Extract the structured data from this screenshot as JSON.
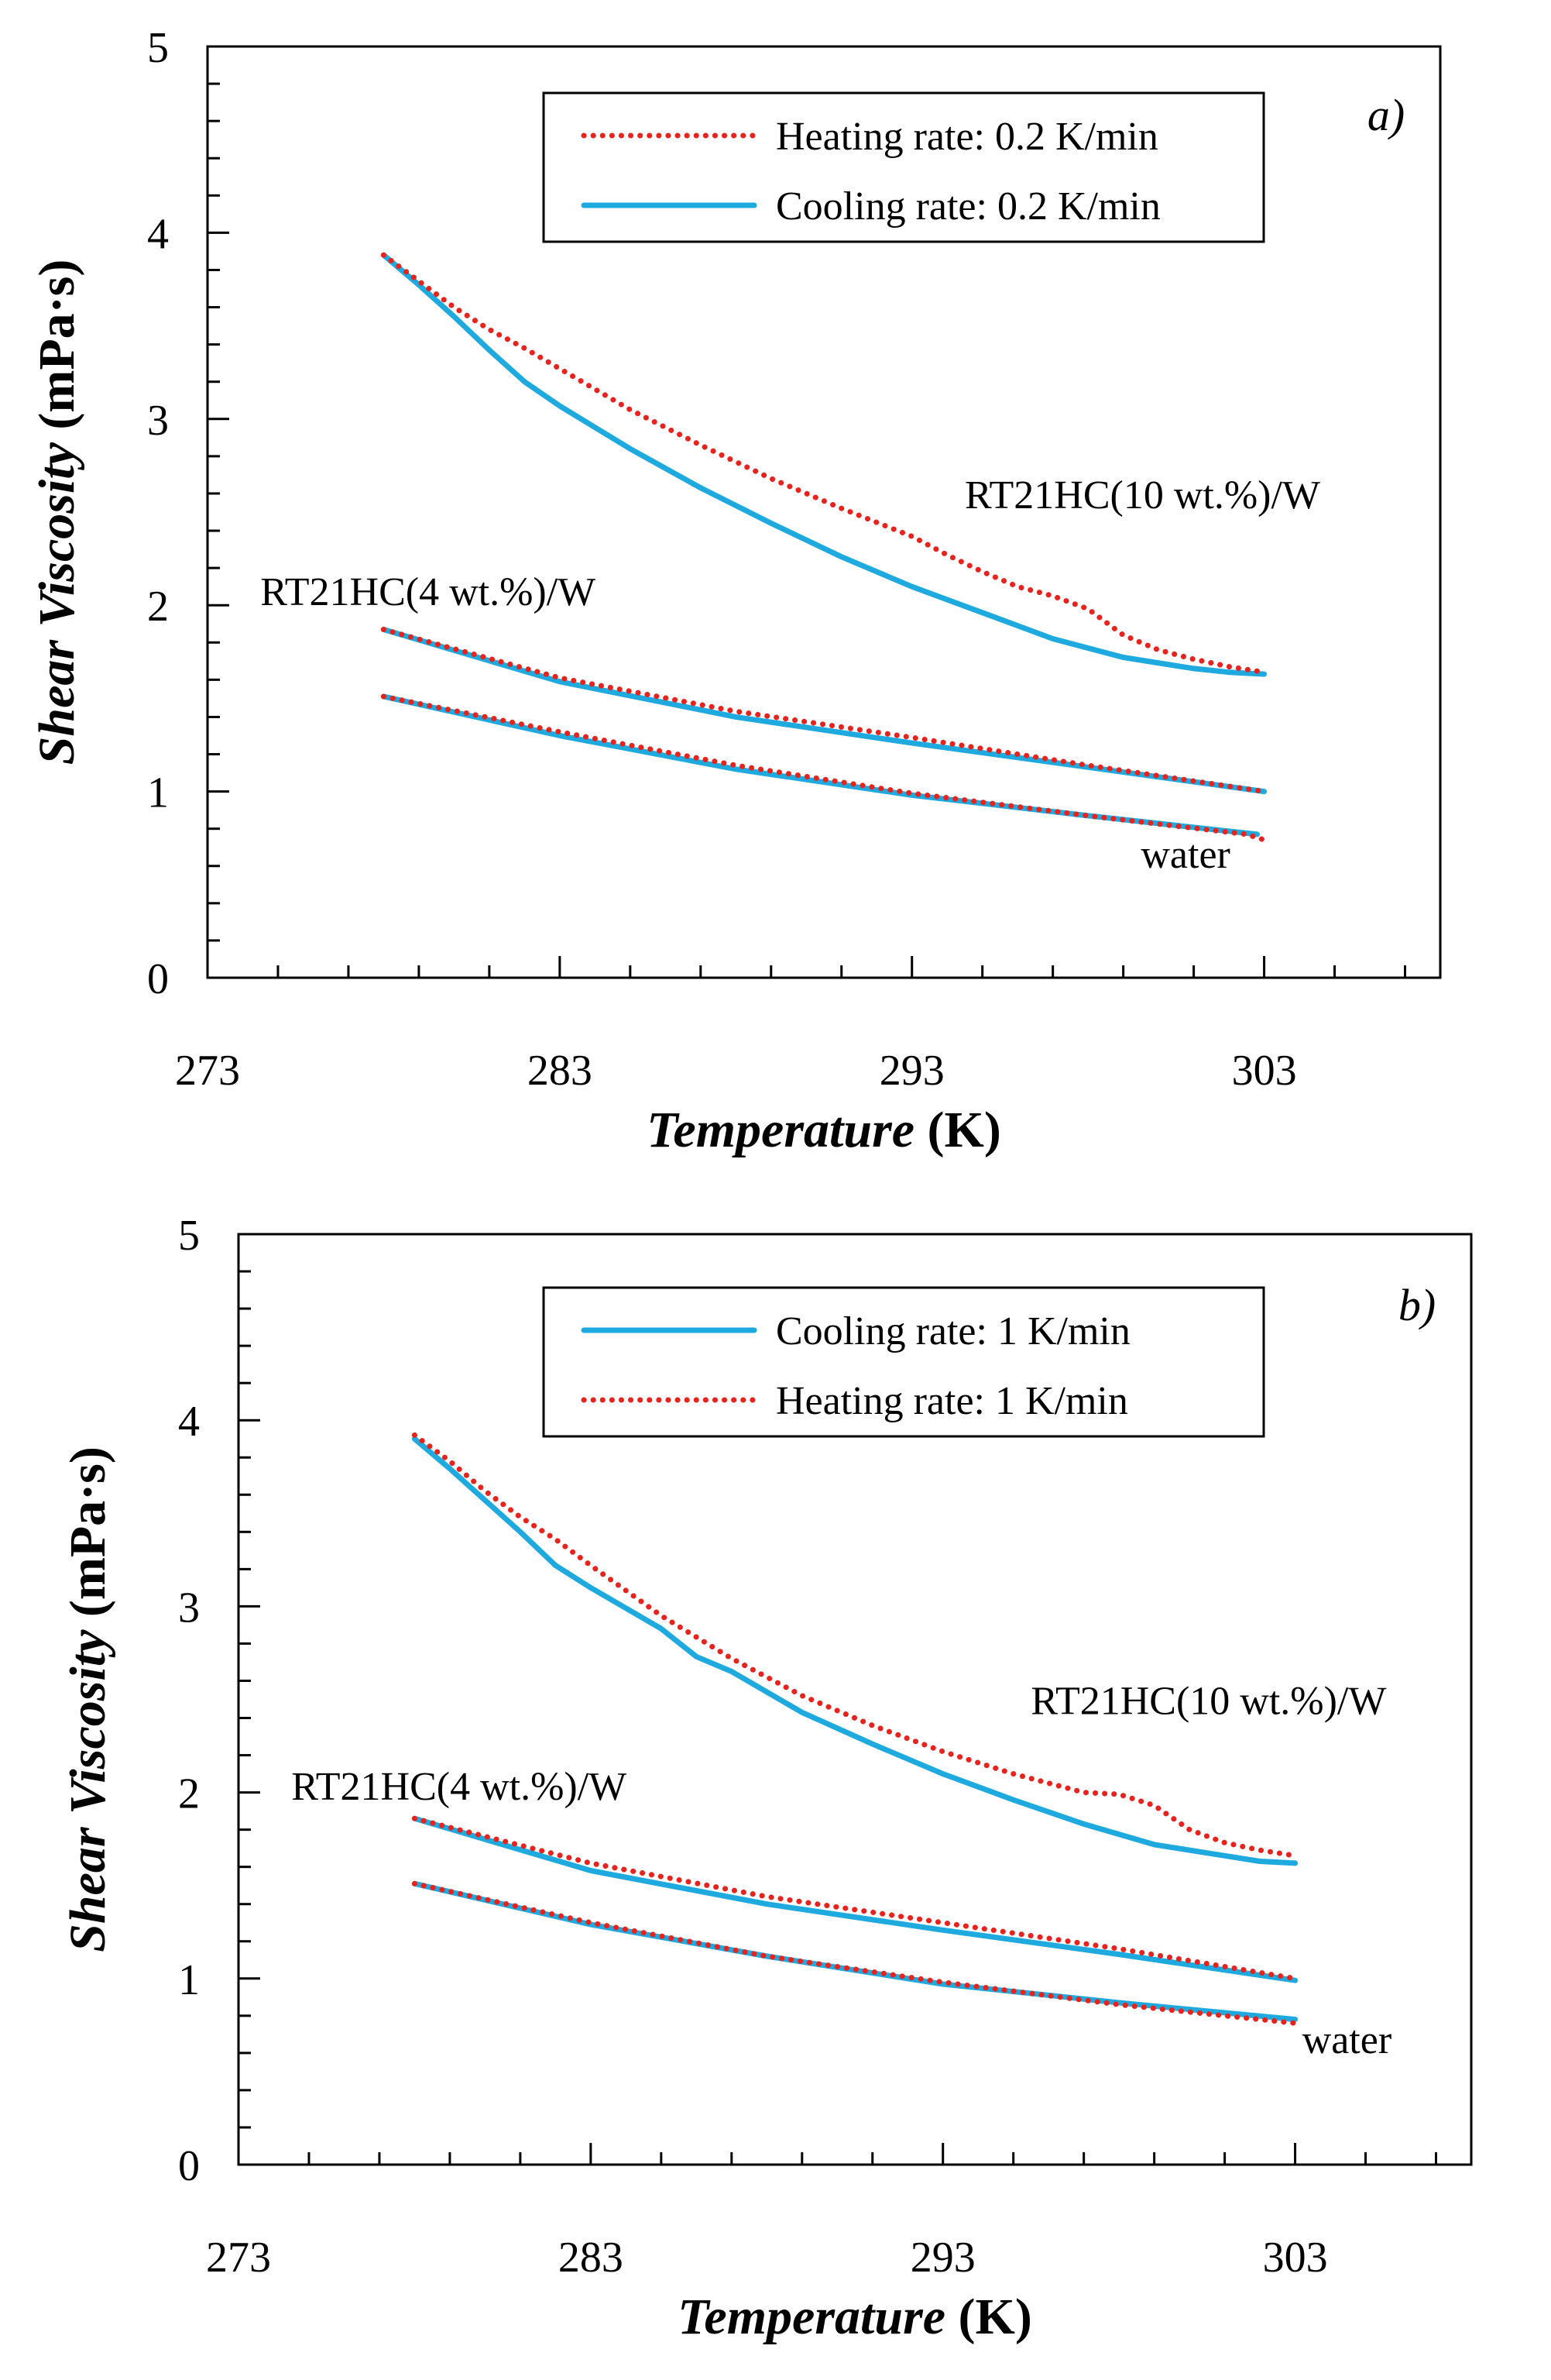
{
  "chart_data": [
    {
      "type": "line",
      "panel_label": "a)",
      "xlabel": {
        "italic": "Temperature",
        "plain": " (K)"
      },
      "ylabel": {
        "italic": "Shear Viscosity",
        "plain": " (mPa·s)"
      },
      "xlim": [
        273,
        308
      ],
      "ylim": [
        0,
        5
      ],
      "xticks": [
        273,
        283,
        293,
        303
      ],
      "yticks": [
        0,
        1,
        2,
        3,
        4,
        5
      ],
      "legend_position": "top-right",
      "series": [
        {
          "name": "Heating rate: 0.2 K/min",
          "style": "dotted",
          "color": "#e8221c",
          "groups": [
            {
              "id": "rt21hc-10",
              "x": [
                278,
                279,
                280,
                281,
                282,
                283,
                285,
                287,
                289,
                291,
                293,
                294,
                295,
                296,
                297,
                298,
                299,
                300,
                301,
                302,
                303
              ],
              "y": [
                3.88,
                3.74,
                3.6,
                3.48,
                3.38,
                3.27,
                3.05,
                2.86,
                2.68,
                2.52,
                2.37,
                2.27,
                2.18,
                2.1,
                2.05,
                1.98,
                1.84,
                1.76,
                1.71,
                1.67,
                1.64
              ]
            },
            {
              "id": "rt21hc-4",
              "x": [
                278,
                283,
                288,
                293,
                298,
                303
              ],
              "y": [
                1.87,
                1.61,
                1.43,
                1.29,
                1.14,
                1.0
              ]
            },
            {
              "id": "water",
              "x": [
                278,
                283,
                288,
                293,
                298,
                302.5,
                303
              ],
              "y": [
                1.51,
                1.32,
                1.14,
                0.99,
                0.87,
                0.77,
                0.74
              ]
            }
          ]
        },
        {
          "name": "Cooling rate: 0.2 K/min",
          "style": "solid",
          "color": "#1eaadf",
          "groups": [
            {
              "id": "rt21hc-10",
              "x": [
                278,
                279,
                280,
                281,
                282,
                283,
                285,
                287,
                289,
                291,
                293,
                295,
                297,
                299,
                301,
                302,
                303
              ],
              "y": [
                3.88,
                3.72,
                3.55,
                3.37,
                3.2,
                3.07,
                2.84,
                2.63,
                2.44,
                2.26,
                2.1,
                1.96,
                1.82,
                1.72,
                1.66,
                1.64,
                1.63
              ]
            },
            {
              "id": "rt21hc-4",
              "x": [
                278,
                283,
                288,
                293,
                298,
                303
              ],
              "y": [
                1.87,
                1.59,
                1.4,
                1.26,
                1.13,
                1.0
              ]
            },
            {
              "id": "water",
              "x": [
                278,
                283,
                288,
                293,
                298,
                302.8
              ],
              "y": [
                1.51,
                1.3,
                1.12,
                0.98,
                0.87,
                0.77
              ]
            }
          ]
        }
      ],
      "annotations": [
        {
          "text": "RT21HC(10 wt.%)/W",
          "x": 294.5,
          "y": 2.52
        },
        {
          "text": "RT21HC(4 wt.%)/W",
          "x": 274.5,
          "y": 2.0
        },
        {
          "text": "water",
          "x": 299.5,
          "y": 0.59
        }
      ]
    },
    {
      "type": "line",
      "panel_label": "b)",
      "xlabel": {
        "italic": "Temperature",
        "plain": " (K)"
      },
      "ylabel": {
        "italic": "Shear Viscosity",
        "plain": " (mPa·s)"
      },
      "xlim": [
        273,
        308
      ],
      "ylim": [
        0,
        5
      ],
      "xticks": [
        273,
        283,
        293,
        303
      ],
      "yticks": [
        0,
        1,
        2,
        3,
        4,
        5
      ],
      "legend_position": "top-right",
      "series": [
        {
          "name": "Cooling rate: 1 K/min",
          "style": "solid",
          "color": "#1eaadf",
          "groups": [
            {
              "id": "rt21hc-10",
              "x": [
                278,
                279,
                280,
                281,
                282,
                283,
                285,
                286,
                287,
                289,
                291,
                293,
                295,
                297,
                299,
                301,
                302,
                303
              ],
              "y": [
                3.9,
                3.74,
                3.57,
                3.4,
                3.22,
                3.1,
                2.88,
                2.73,
                2.65,
                2.43,
                2.26,
                2.1,
                1.96,
                1.83,
                1.72,
                1.66,
                1.63,
                1.62
              ]
            },
            {
              "id": "rt21hc-4",
              "x": [
                278,
                283,
                288,
                293,
                298,
                303
              ],
              "y": [
                1.86,
                1.58,
                1.4,
                1.26,
                1.13,
                0.99
              ]
            },
            {
              "id": "water",
              "x": [
                278,
                283,
                288,
                293,
                298,
                303
              ],
              "y": [
                1.51,
                1.29,
                1.12,
                0.97,
                0.87,
                0.78
              ]
            }
          ]
        },
        {
          "name": "Heating rate: 1 K/min",
          "style": "dotted",
          "color": "#e8221c",
          "groups": [
            {
              "id": "rt21hc-10",
              "x": [
                278,
                279,
                280,
                281,
                282,
                283,
                285,
                287,
                289,
                291,
                293,
                295,
                297,
                298,
                299,
                300,
                301,
                302,
                303
              ],
              "y": [
                3.92,
                3.78,
                3.62,
                3.48,
                3.36,
                3.22,
                2.95,
                2.72,
                2.52,
                2.36,
                2.22,
                2.1,
                2.0,
                1.99,
                1.93,
                1.8,
                1.73,
                1.69,
                1.66
              ]
            },
            {
              "id": "rt21hc-4",
              "x": [
                278,
                283,
                288,
                293,
                298,
                303
              ],
              "y": [
                1.86,
                1.62,
                1.44,
                1.3,
                1.16,
                1.0
              ]
            },
            {
              "id": "water",
              "x": [
                278,
                283,
                288,
                293,
                298,
                303
              ],
              "y": [
                1.51,
                1.3,
                1.12,
                0.98,
                0.86,
                0.76
              ]
            }
          ]
        }
      ],
      "annotations": [
        {
          "text": "RT21HC(10 wt.%)/W",
          "x": 295.5,
          "y": 2.42
        },
        {
          "text": "RT21HC(4 wt.%)/W",
          "x": 274.5,
          "y": 1.96
        },
        {
          "text": "water",
          "x": 303.2,
          "y": 0.6
        }
      ]
    }
  ]
}
